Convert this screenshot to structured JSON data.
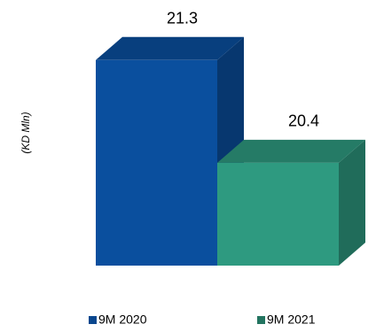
{
  "chart_data": {
    "type": "bar3d",
    "y_label": "(KD Mln)",
    "categories": [
      "9M 2020",
      "9M 2021"
    ],
    "values": [
      21.3,
      20.4
    ],
    "colors": [
      "#0a4f9e",
      "#2e9a80"
    ],
    "ylim": [
      19.5,
      21.5
    ]
  }
}
